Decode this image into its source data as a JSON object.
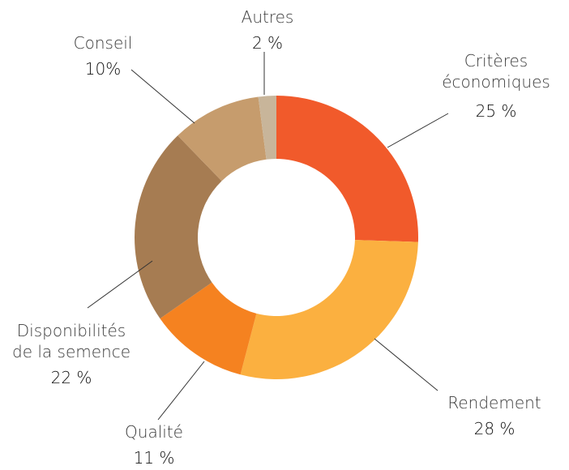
{
  "chart_data": {
    "type": "donut",
    "categories": [
      "Critères\néconomiques",
      "Rendement",
      "Qualité",
      "Disponibilités\nde la semence",
      "Conseil",
      "Autres"
    ],
    "values": [
      25,
      28,
      11,
      22,
      10,
      2
    ],
    "value_labels": [
      "25 %",
      "28 %",
      "11 %",
      "22 %",
      "10%",
      "2 %"
    ],
    "colors": [
      "#f15a2b",
      "#fbb040",
      "#f58220",
      "#a67c52",
      "#c69c6d",
      "#c8b59a"
    ]
  }
}
